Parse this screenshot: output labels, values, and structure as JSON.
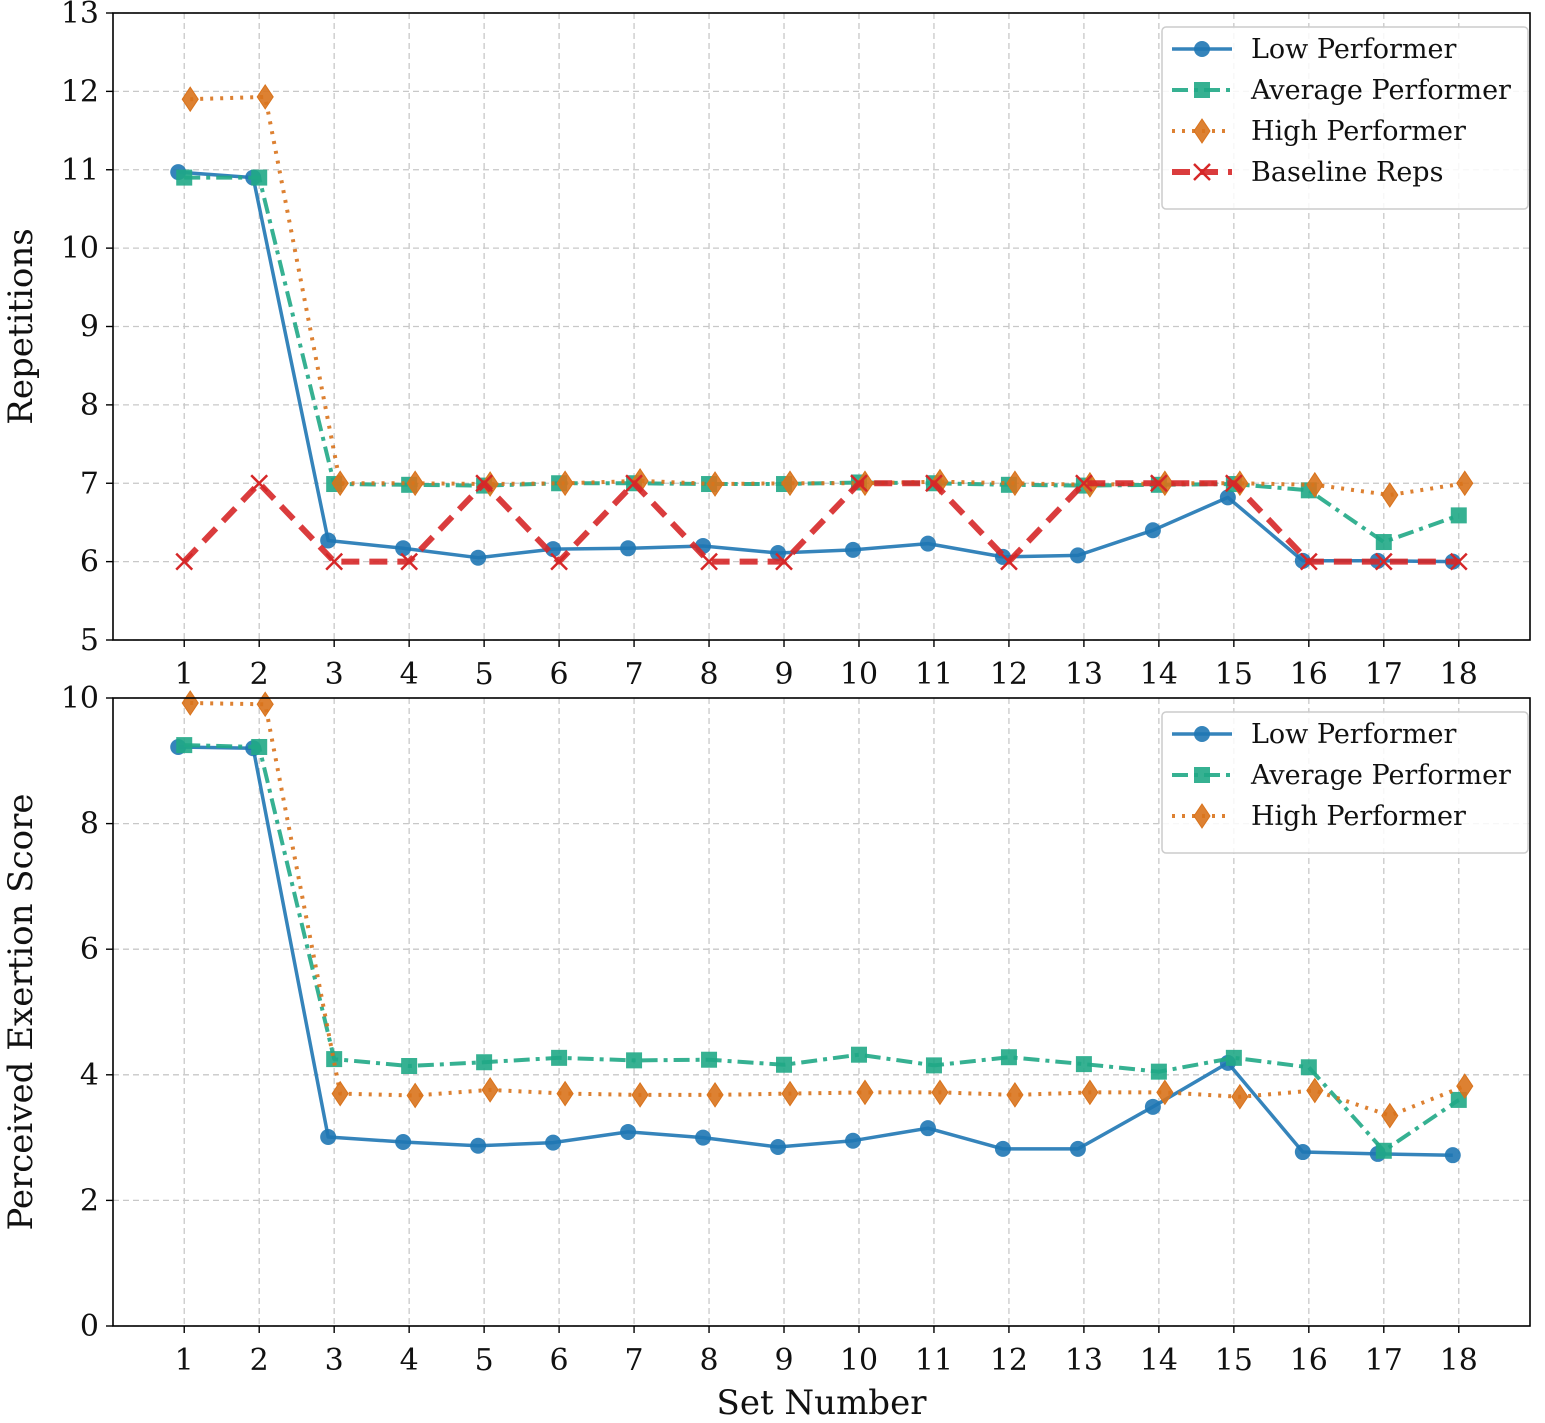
{
  "colors": {
    "low": "#1f77b4",
    "average": "#20a886",
    "high": "#d9731c",
    "baseline": "#d62728",
    "grid": "#c8c8c8",
    "axis": "#000000"
  },
  "chart_data": [
    {
      "type": "line",
      "title": "",
      "xlabel": "",
      "ylabel": "Repetitions",
      "xlim": [
        0.05,
        18.95
      ],
      "ylim": [
        5,
        13
      ],
      "grid": true,
      "legend_position": "top-right",
      "x": [
        1,
        2,
        3,
        4,
        5,
        6,
        7,
        8,
        9,
        10,
        11,
        12,
        13,
        14,
        15,
        16,
        17,
        18
      ],
      "x_tick_labels": [
        "1",
        "2",
        "3",
        "4",
        "5",
        "6",
        "7",
        "8",
        "9",
        "10",
        "11",
        "12",
        "13",
        "14",
        "15",
        "16",
        "17",
        "18"
      ],
      "y_ticks": [
        5,
        6,
        7,
        8,
        9,
        10,
        11,
        12,
        13
      ],
      "y_tick_labels": [
        "5",
        "6",
        "7",
        "8",
        "9",
        "10",
        "11",
        "12",
        "13"
      ],
      "series": [
        {
          "name": "Low Performer",
          "key": "low",
          "marker": "circle",
          "line_style": "solid",
          "x": [
            0.92,
            1.92,
            2.92,
            3.92,
            4.92,
            5.92,
            6.92,
            7.92,
            8.92,
            9.92,
            10.92,
            11.92,
            12.92,
            13.92,
            14.92,
            15.92,
            16.92,
            17.92
          ],
          "values": [
            10.97,
            10.9,
            6.27,
            6.17,
            6.05,
            6.16,
            6.17,
            6.2,
            6.11,
            6.15,
            6.23,
            6.06,
            6.08,
            6.4,
            6.82,
            6.01,
            6.01,
            6.0
          ]
        },
        {
          "name": "Average Performer",
          "key": "average",
          "marker": "square",
          "line_style": "dashdot",
          "x": [
            1.0,
            2.0,
            3.0,
            4.0,
            5.0,
            6.0,
            7.0,
            8.0,
            9.0,
            10.0,
            11.0,
            12.0,
            13.0,
            14.0,
            15.0,
            16.0,
            17.0,
            18.0
          ],
          "values": [
            10.9,
            10.9,
            6.99,
            6.98,
            6.97,
            7.0,
            7.0,
            6.99,
            6.99,
            7.01,
            7.0,
            6.98,
            6.97,
            6.98,
            6.99,
            6.91,
            6.25,
            6.59
          ]
        },
        {
          "name": "High Performer",
          "key": "high",
          "marker": "diamond",
          "line_style": "dotted",
          "x": [
            1.08,
            2.08,
            3.08,
            4.08,
            5.08,
            6.08,
            7.08,
            8.08,
            9.08,
            10.08,
            11.08,
            12.08,
            13.08,
            14.08,
            15.08,
            16.08,
            17.08,
            18.08
          ],
          "values": [
            11.9,
            11.93,
            7.0,
            7.0,
            6.99,
            7.0,
            7.03,
            6.99,
            7.0,
            7.0,
            7.02,
            7.0,
            6.98,
            7.0,
            7.0,
            6.98,
            6.85,
            7.0
          ]
        },
        {
          "name": "Baseline Reps",
          "key": "baseline",
          "marker": "x",
          "line_style": "dashed",
          "x": [
            1,
            2,
            3,
            4,
            5,
            6,
            7,
            8,
            9,
            10,
            11,
            12,
            13,
            14,
            15,
            16,
            17,
            18
          ],
          "values": [
            6,
            7,
            6,
            6,
            7,
            6,
            7,
            6,
            6,
            7,
            7,
            6,
            7,
            7,
            7,
            6,
            6,
            6
          ]
        }
      ]
    },
    {
      "type": "line",
      "title": "",
      "xlabel": "Set Number",
      "ylabel": "Perceived Exertion Score",
      "xlim": [
        0.05,
        18.95
      ],
      "ylim": [
        0,
        10
      ],
      "grid": true,
      "legend_position": "top-right",
      "x": [
        1,
        2,
        3,
        4,
        5,
        6,
        7,
        8,
        9,
        10,
        11,
        12,
        13,
        14,
        15,
        16,
        17,
        18
      ],
      "x_tick_labels": [
        "1",
        "2",
        "3",
        "4",
        "5",
        "6",
        "7",
        "8",
        "9",
        "10",
        "11",
        "12",
        "13",
        "14",
        "15",
        "16",
        "17",
        "18"
      ],
      "y_ticks": [
        0,
        2,
        4,
        6,
        8,
        10
      ],
      "y_tick_labels": [
        "0",
        "2",
        "4",
        "6",
        "8",
        "10"
      ],
      "series": [
        {
          "name": "Low Performer",
          "key": "low",
          "marker": "circle",
          "line_style": "solid",
          "x": [
            0.92,
            1.92,
            2.92,
            3.92,
            4.92,
            5.92,
            6.92,
            7.92,
            8.92,
            9.92,
            10.92,
            11.92,
            12.92,
            13.92,
            14.92,
            15.92,
            16.92,
            17.92
          ],
          "values": [
            9.22,
            9.2,
            3.01,
            2.93,
            2.87,
            2.92,
            3.09,
            3.0,
            2.85,
            2.95,
            3.15,
            2.82,
            2.82,
            3.49,
            4.19,
            2.77,
            2.74,
            2.72
          ]
        },
        {
          "name": "Average Performer",
          "key": "average",
          "marker": "square",
          "line_style": "dashdot",
          "x": [
            1.0,
            2.0,
            3.0,
            4.0,
            5.0,
            6.0,
            7.0,
            8.0,
            9.0,
            10.0,
            11.0,
            12.0,
            13.0,
            14.0,
            15.0,
            16.0,
            17.0,
            18.0
          ],
          "values": [
            9.25,
            9.22,
            4.25,
            4.14,
            4.2,
            4.27,
            4.23,
            4.24,
            4.16,
            4.32,
            4.15,
            4.28,
            4.17,
            4.05,
            4.27,
            4.12,
            2.79,
            3.6
          ]
        },
        {
          "name": "High Performer",
          "key": "high",
          "marker": "diamond",
          "line_style": "dotted",
          "x": [
            1.08,
            2.08,
            3.08,
            4.08,
            5.08,
            6.08,
            7.08,
            8.08,
            9.08,
            10.08,
            11.08,
            12.08,
            13.08,
            14.08,
            15.08,
            16.08,
            17.08,
            18.08
          ],
          "values": [
            9.92,
            9.9,
            3.7,
            3.67,
            3.76,
            3.7,
            3.68,
            3.68,
            3.7,
            3.72,
            3.72,
            3.68,
            3.72,
            3.72,
            3.65,
            3.75,
            3.35,
            3.82
          ]
        }
      ]
    }
  ]
}
